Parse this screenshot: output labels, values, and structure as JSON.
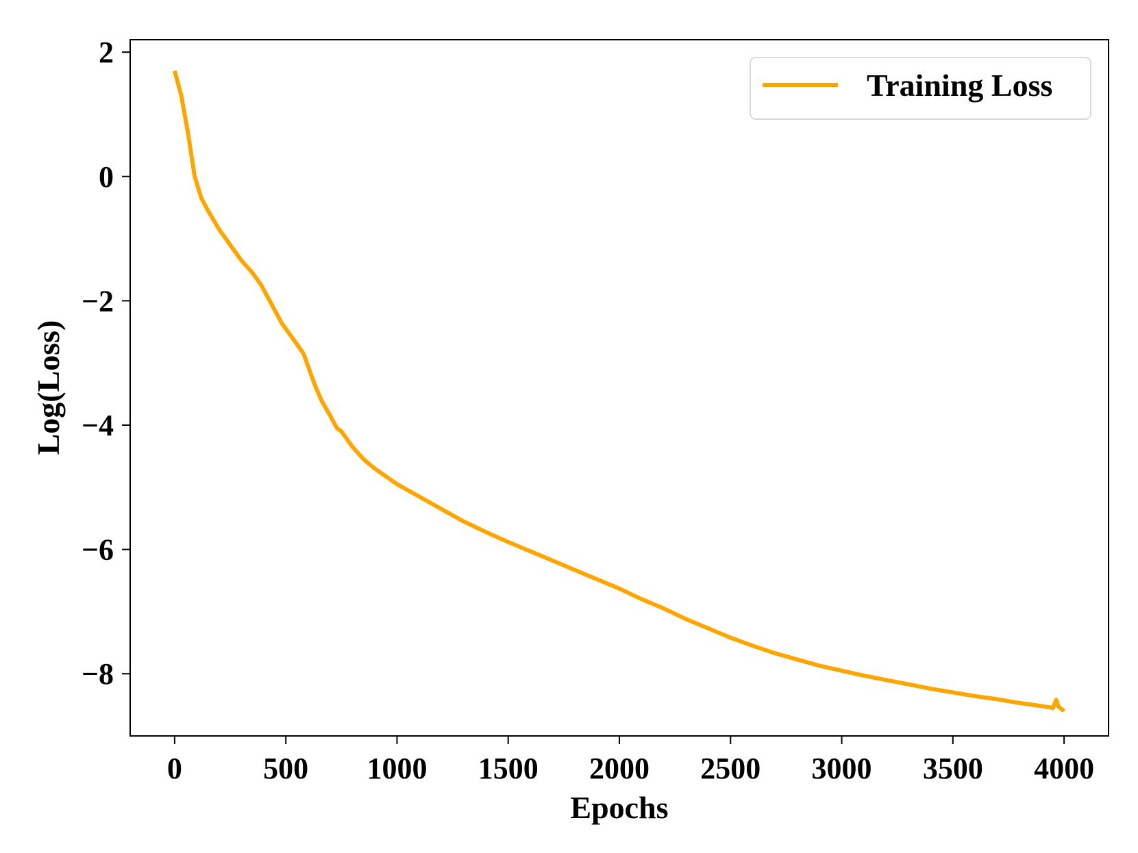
{
  "chart_data": {
    "type": "line",
    "title": "",
    "xlabel": "Epochs",
    "ylabel": "Log(Loss)",
    "xlim": [
      -200,
      4200
    ],
    "ylim": [
      -9.0,
      2.2
    ],
    "xticks": [
      0,
      500,
      1000,
      1500,
      2000,
      2500,
      3000,
      3500,
      4000
    ],
    "xtick_labels": [
      "0",
      "500",
      "1000",
      "1500",
      "2000",
      "2500",
      "3000",
      "3500",
      "4000"
    ],
    "yticks": [
      2,
      0,
      -2,
      -4,
      -6,
      -8
    ],
    "ytick_labels": [
      "2",
      "0",
      "−2",
      "−4",
      "−6",
      "−8"
    ],
    "grid": false,
    "legend_position": "top-right",
    "series": [
      {
        "name": "Training Loss",
        "color": "#FFA500",
        "x": [
          0,
          30,
          60,
          90,
          120,
          150,
          200,
          250,
          300,
          350,
          390,
          420,
          450,
          480,
          510,
          540,
          580,
          600,
          630,
          660,
          700,
          730,
          750,
          800,
          850,
          900,
          1000,
          1100,
          1200,
          1300,
          1400,
          1500,
          1600,
          1700,
          1800,
          1900,
          2000,
          2100,
          2200,
          2300,
          2400,
          2500,
          2600,
          2700,
          2800,
          2900,
          3000,
          3100,
          3200,
          3300,
          3400,
          3500,
          3600,
          3700,
          3800,
          3900,
          3950,
          3965,
          3975,
          4000
        ],
        "y": [
          1.7,
          1.3,
          0.7,
          0.0,
          -0.35,
          -0.55,
          -0.85,
          -1.1,
          -1.35,
          -1.55,
          -1.75,
          -1.95,
          -2.15,
          -2.35,
          -2.5,
          -2.65,
          -2.85,
          -3.05,
          -3.35,
          -3.6,
          -3.85,
          -4.05,
          -4.1,
          -4.35,
          -4.55,
          -4.7,
          -4.95,
          -5.15,
          -5.35,
          -5.55,
          -5.72,
          -5.88,
          -6.03,
          -6.18,
          -6.33,
          -6.48,
          -6.63,
          -6.8,
          -6.95,
          -7.12,
          -7.27,
          -7.42,
          -7.55,
          -7.67,
          -7.77,
          -7.87,
          -7.95,
          -8.03,
          -8.1,
          -8.17,
          -8.24,
          -8.3,
          -8.36,
          -8.41,
          -8.47,
          -8.52,
          -8.55,
          -8.42,
          -8.53,
          -8.6
        ]
      }
    ]
  }
}
